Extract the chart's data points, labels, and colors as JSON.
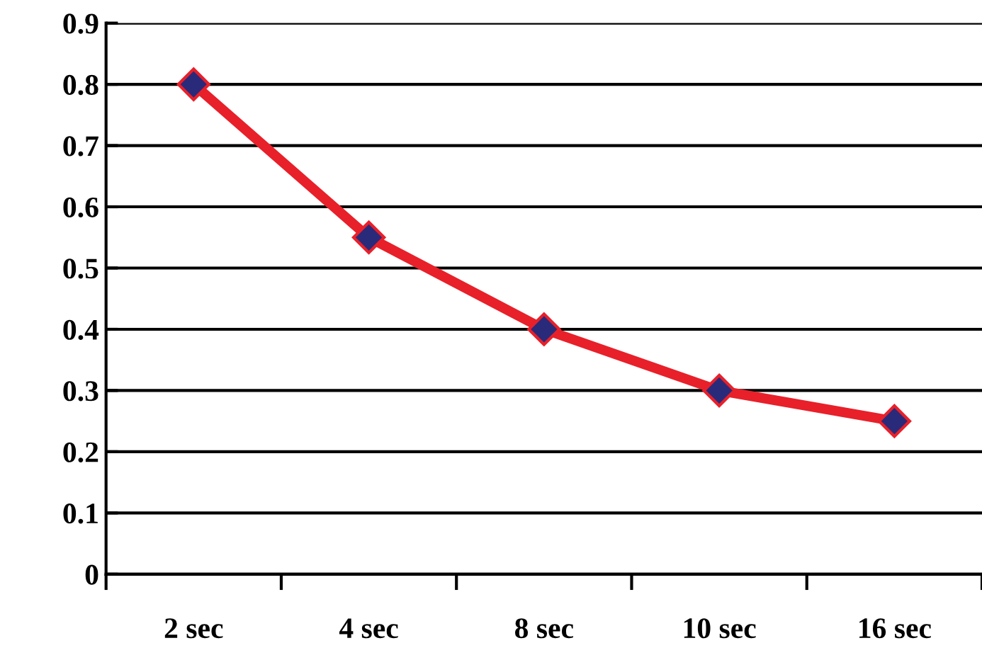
{
  "chart_data": {
    "type": "line",
    "categories": [
      "2 sec",
      "4 sec",
      "8 sec",
      "10 sec",
      "16 sec"
    ],
    "series": [
      {
        "color": "#e8202a",
        "values": [
          0.8,
          0.55,
          0.4,
          0.3,
          0.25
        ]
      }
    ],
    "ylim": [
      0,
      0.9
    ],
    "yticks": [
      0,
      0.1,
      0.2,
      0.3,
      0.4,
      0.5,
      0.6,
      0.7,
      0.8,
      0.9
    ],
    "grid": "y",
    "marker": "diamond",
    "line_style": "solid",
    "legend": false
  }
}
